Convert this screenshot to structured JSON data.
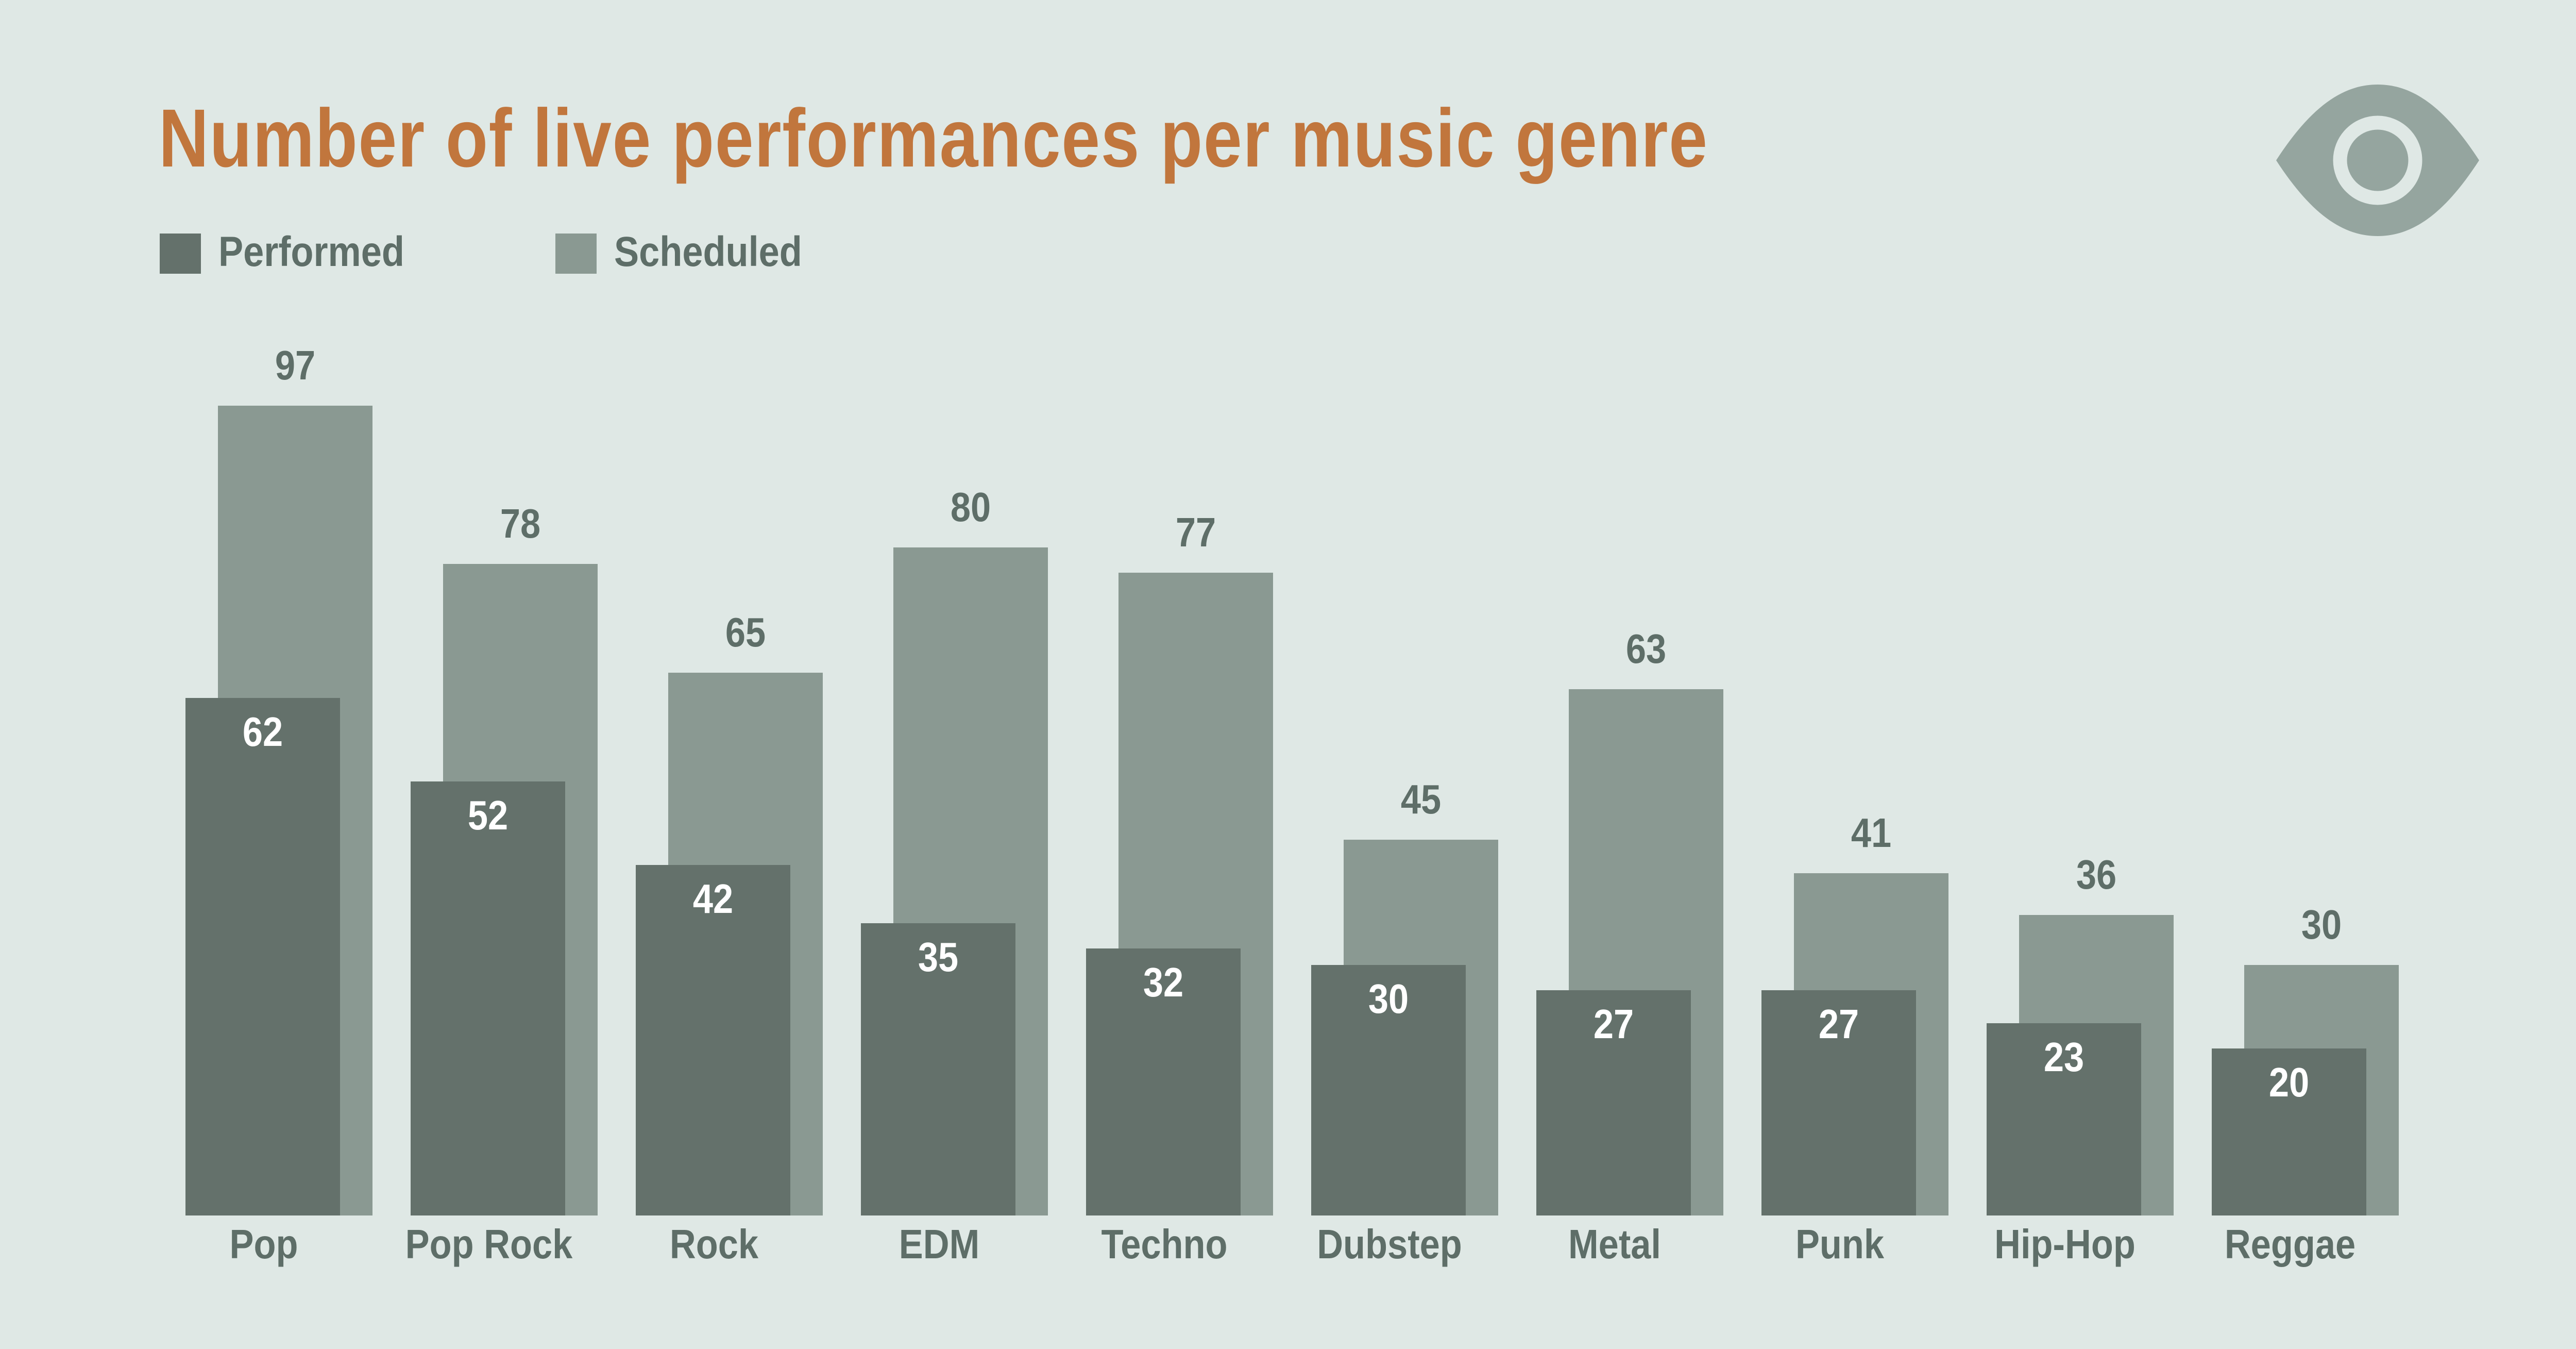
{
  "title": "Number of live performances per music genre",
  "legend": {
    "items": [
      {
        "label": "Performed",
        "color": "#64716b"
      },
      {
        "label": "Scheduled",
        "color": "#8a9992"
      }
    ]
  },
  "chart_data": {
    "type": "bar",
    "title": "Number of live performances per music genre",
    "categories": [
      "Pop",
      "Pop Rock",
      "Rock",
      "EDM",
      "Techno",
      "Dubstep",
      "Metal",
      "Punk",
      "Hip-Hop",
      "Reggae"
    ],
    "series": [
      {
        "name": "Performed",
        "color": "#64716b",
        "values": [
          62,
          52,
          42,
          35,
          32,
          30,
          27,
          27,
          23,
          20
        ]
      },
      {
        "name": "Scheduled",
        "color": "#8a9992",
        "values": [
          97,
          78,
          65,
          80,
          77,
          45,
          63,
          41,
          36,
          30
        ]
      }
    ],
    "value_labels": true,
    "grid": false,
    "axes_visible": false,
    "legend_position": "top-left"
  },
  "colors": {
    "background": "#dfe8e5",
    "title": "#c1763d",
    "label": "#5e6e68",
    "performed_value_label": "#ffffff",
    "icon": "#95a59f"
  },
  "icons": {
    "brand": "eye-icon"
  }
}
